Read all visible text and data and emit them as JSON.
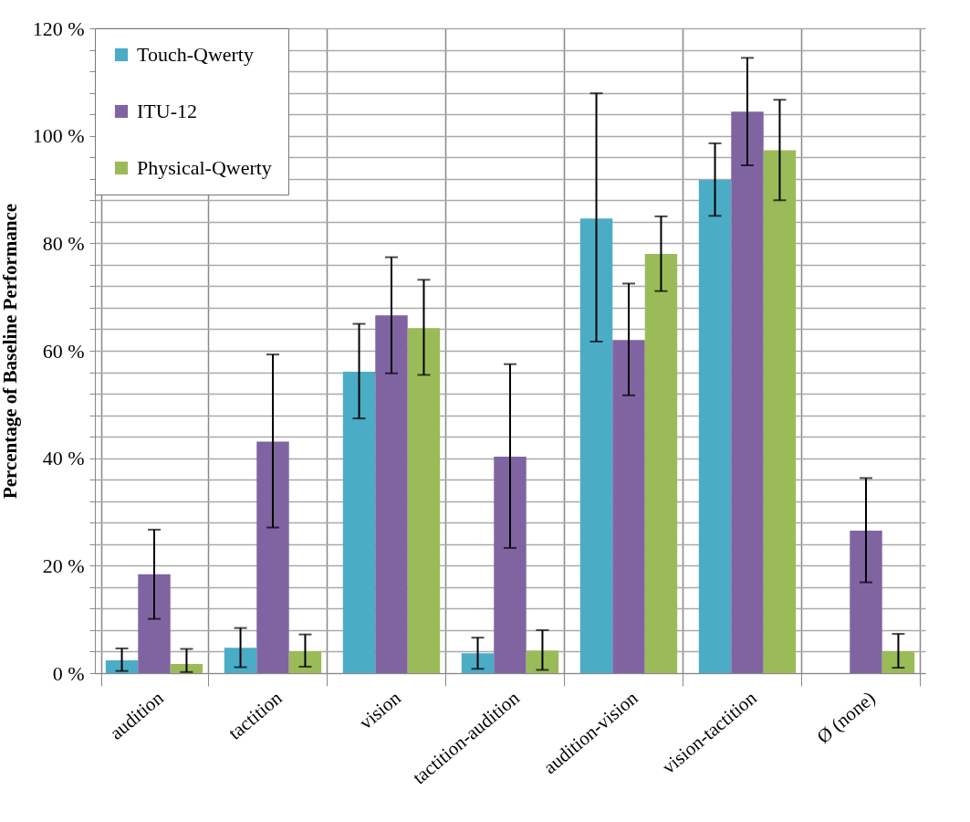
{
  "chart_data": {
    "type": "bar",
    "ylabel": "Percentage of Baseline Performance",
    "categories": [
      "audition",
      "tactition",
      "vision",
      "tactition-audition",
      "audition-vision",
      "vision-tactition",
      "Ø (none)"
    ],
    "series": [
      {
        "name": "Touch-Qwerty",
        "color": "#4bacc6",
        "values": [
          2.4,
          4.7,
          56.1,
          3.7,
          84.6,
          91.8,
          0
        ],
        "errors": [
          [
            0.4,
            4.6
          ],
          [
            1.1,
            8.4
          ],
          [
            47.4,
            65.0
          ],
          [
            0.8,
            6.6
          ],
          [
            61.7,
            107.9
          ],
          [
            85.1,
            98.6
          ],
          null
        ]
      },
      {
        "name": "ITU-12",
        "color": "#8064a2",
        "values": [
          18.4,
          43.1,
          66.6,
          40.3,
          62.0,
          104.5,
          26.5
        ],
        "errors": [
          [
            10.1,
            26.7
          ],
          [
            27.1,
            59.3
          ],
          [
            55.8,
            77.4
          ],
          [
            23.3,
            57.5
          ],
          [
            51.7,
            72.5
          ],
          [
            94.5,
            114.5
          ],
          [
            16.9,
            36.3
          ]
        ]
      },
      {
        "name": "Physical-Qwerty",
        "color": "#9bbb59",
        "values": [
          1.7,
          4.1,
          64.2,
          4.2,
          78.0,
          97.3,
          4.1
        ],
        "errors": [
          [
            0.2,
            4.5
          ],
          [
            1.2,
            7.2
          ],
          [
            55.5,
            73.2
          ],
          [
            0.6,
            8.0
          ],
          [
            71.1,
            85.0
          ],
          [
            88.0,
            106.7
          ],
          [
            1.0,
            7.3
          ]
        ]
      }
    ],
    "ylim": [
      0,
      120
    ],
    "yticks": [
      {
        "value": 0,
        "label": "0 %"
      },
      {
        "value": 4,
        "label": null
      },
      {
        "value": 8,
        "label": null
      },
      {
        "value": 12,
        "label": null
      },
      {
        "value": 16,
        "label": null
      },
      {
        "value": 20,
        "label": "20 %"
      },
      {
        "value": 24,
        "label": null
      },
      {
        "value": 28,
        "label": null
      },
      {
        "value": 32,
        "label": null
      },
      {
        "value": 36,
        "label": null
      },
      {
        "value": 40,
        "label": "40 %"
      },
      {
        "value": 44,
        "label": null
      },
      {
        "value": 48,
        "label": null
      },
      {
        "value": 52,
        "label": null
      },
      {
        "value": 56,
        "label": null
      },
      {
        "value": 60,
        "label": "60 %"
      },
      {
        "value": 64,
        "label": null
      },
      {
        "value": 68,
        "label": null
      },
      {
        "value": 72,
        "label": null
      },
      {
        "value": 76,
        "label": null
      },
      {
        "value": 80,
        "label": "80 %"
      },
      {
        "value": 84,
        "label": null
      },
      {
        "value": 88,
        "label": null
      },
      {
        "value": 92,
        "label": null
      },
      {
        "value": 96,
        "label": null
      },
      {
        "value": 100,
        "label": "100 %"
      },
      {
        "value": 104,
        "label": null
      },
      {
        "value": 108,
        "label": null
      },
      {
        "value": 112,
        "label": null
      },
      {
        "value": 116,
        "label": null
      },
      {
        "value": 120,
        "label": "120 %"
      }
    ],
    "grid": true,
    "legend": "top left"
  }
}
